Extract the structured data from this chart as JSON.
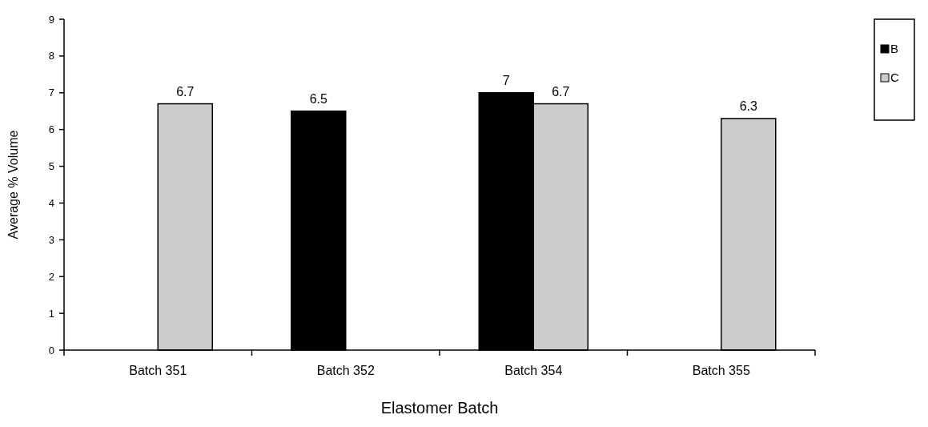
{
  "chart_data": {
    "type": "bar",
    "xlabel": "Elastomer Batch",
    "ylabel": "Average % Volume",
    "categories": [
      "Batch 351",
      "Batch 352",
      "Batch 354",
      "Batch 355"
    ],
    "series": [
      {
        "name": "B",
        "color": "#000000",
        "values": [
          null,
          6.5,
          7,
          null
        ]
      },
      {
        "name": "C",
        "color": "#cccccc",
        "values": [
          6.7,
          null,
          6.7,
          6.3
        ]
      }
    ],
    "ylim": [
      0,
      9
    ],
    "yticks": [
      0,
      1,
      2,
      3,
      4,
      5,
      6,
      7,
      8,
      9
    ],
    "grid": false,
    "legend": "right",
    "data_labels": true
  }
}
